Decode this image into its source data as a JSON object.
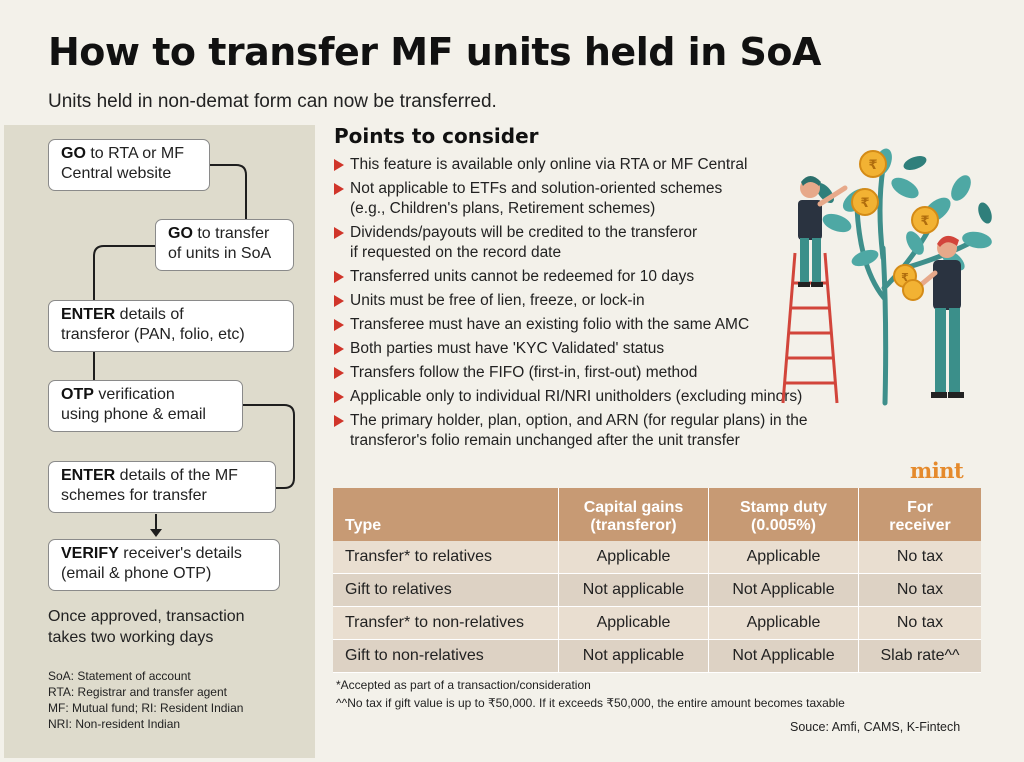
{
  "header": {
    "title": "How to transfer MF units held in SoA",
    "subtitle": "Units held in non-demat form can now be transferred."
  },
  "steps": [
    {
      "bold": "GO",
      "rest1": " to RTA or MF",
      "line2": "Central website"
    },
    {
      "bold": "GO",
      "rest1": " to transfer",
      "line2": "of units in SoA"
    },
    {
      "bold": "ENTER",
      "rest1": " details of",
      "line2": "transferor (PAN, folio, etc)"
    },
    {
      "bold": "OTP",
      "rest1": " verification",
      "line2": "using phone & email"
    },
    {
      "bold": "ENTER",
      "rest1": " details of the MF",
      "line2": "schemes for transfer"
    },
    {
      "bold": "VERIFY",
      "rest1": " receiver's details",
      "line2": "(email & phone OTP)"
    }
  ],
  "approved": {
    "line1": "Once approved, transaction",
    "line2": "takes two working days"
  },
  "glossary": [
    "SoA: Statement of account",
    "RTA: Registrar and transfer agent",
    "MF: Mutual fund; RI: Resident Indian",
    "NRI: Non-resident Indian"
  ],
  "points": {
    "title": "Points to consider",
    "items": [
      [
        "This feature is available only online via RTA or MF Central"
      ],
      [
        "Not applicable to ETFs and solution-oriented schemes",
        "(e.g., Children's plans, Retirement schemes)"
      ],
      [
        "Dividends/payouts will be credited to the transferor",
        "if requested on the record date"
      ],
      [
        "Transferred units cannot be redeemed for 10 days"
      ],
      [
        "Units must be free of lien, freeze, or lock-in"
      ],
      [
        "Transferee must have an existing folio with the same AMC"
      ],
      [
        "Both parties must have 'KYC Validated' status"
      ],
      [
        "Transfers follow the FIFO (first-in, first-out) method"
      ],
      [
        "Applicable only to individual RI/NRI unitholders (excluding minors)"
      ],
      [
        "The primary holder, plan, option, and ARN (for regular plans) in the",
        "transferor's folio remain unchanged after the unit transfer"
      ]
    ]
  },
  "brand": "mint",
  "table": {
    "headers": [
      [
        "Type"
      ],
      [
        "Capital gains",
        "(transferor)"
      ],
      [
        "Stamp duty",
        "(0.005%)"
      ],
      [
        "For",
        "receiver"
      ]
    ],
    "rows": [
      [
        "Transfer* to relatives",
        "Applicable",
        "Applicable",
        "No tax"
      ],
      [
        "Gift to relatives",
        "Not applicable",
        "Not Applicable",
        "No tax"
      ],
      [
        "Transfer* to non-relatives",
        "Applicable",
        "Applicable",
        "No tax"
      ],
      [
        "Gift to non-relatives",
        "Not applicable",
        "Not Applicable",
        "Slab rate^^"
      ]
    ]
  },
  "footnotes": [
    "*Accepted as part of a transaction/consideration",
    "^^No tax if gift value is up to ₹50,000. If it exceeds ₹50,000, the entire amount becomes taxable"
  ],
  "source": "Souce: Amfi, CAMS, K-Fintech",
  "icons": {
    "bullet": "red-triangle-bullet-icon",
    "illustration": "money-tree-illustration",
    "coin": "rupee-coin-icon",
    "arrow": "arrow-down-icon"
  },
  "colors": {
    "bullet": "#d0352a",
    "table_header": "#c79a74",
    "left_panel": "#dedbcc",
    "brand": "#e58a2c"
  }
}
